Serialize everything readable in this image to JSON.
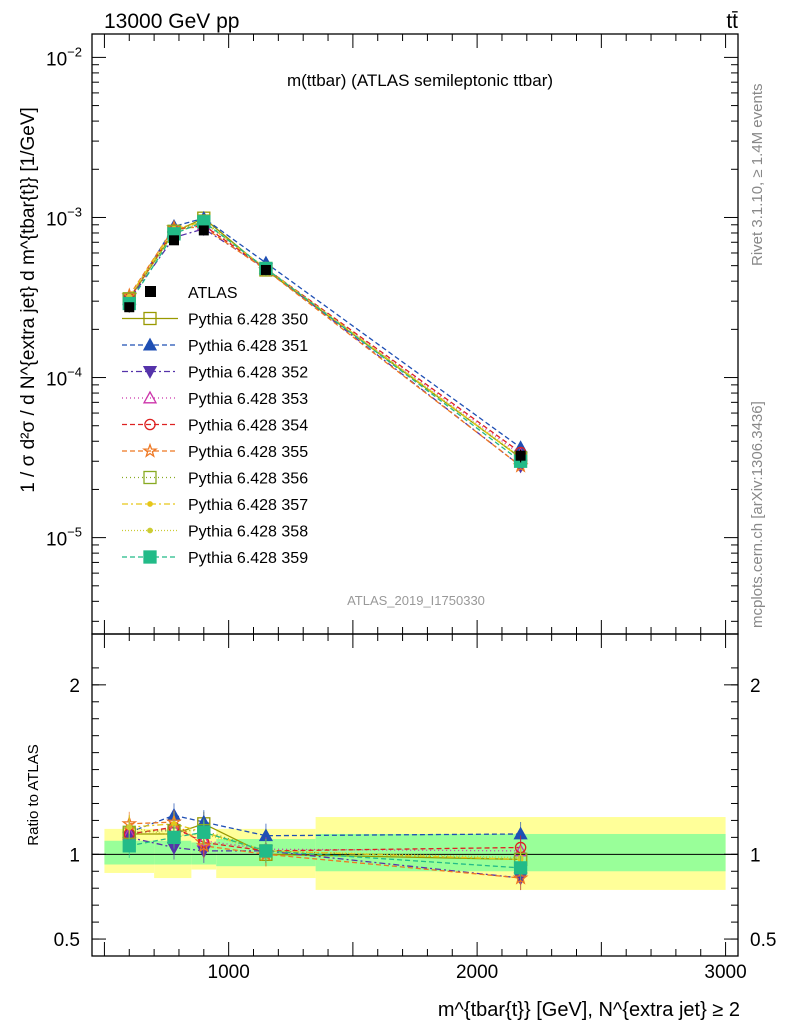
{
  "header": {
    "energy": "13000 GeV pp",
    "process": "tt̄",
    "rivet": "Rivet 3.1.10, ≥ 1.4M events",
    "mcplots": "mcplots.cern.ch [arXiv:1306.3436]"
  },
  "colors": {
    "band_inner": "#99ff99",
    "band_outer": "#ffff99"
  },
  "chart_data": [
    {
      "type": "line",
      "panel": "main",
      "title": "m(ttbar) (ATLAS semileptonic ttbar)",
      "analysis_tag": "ATLAS_2019_I1750330",
      "ylabel": "1 / σ d²σ / d N^{extra jet} d m^{tbar{t}} [1/GeV]",
      "yscale": "log",
      "xlim": [
        450,
        3050
      ],
      "ylim": [
        2.5e-06,
        0.014
      ],
      "y_ticks": [
        {
          "v": 1e-05,
          "m": "10",
          "e": "−5"
        },
        {
          "v": 0.0001,
          "m": "10",
          "e": "−4"
        },
        {
          "v": 0.001,
          "m": "10",
          "e": "−3"
        },
        {
          "v": 0.01,
          "m": "10",
          "e": "−2"
        }
      ],
      "legend_position": "left",
      "x": [
        600,
        780,
        900,
        1150,
        2175
      ],
      "data": {
        "name": "ATLAS",
        "values": [
          0.000275,
          0.00072,
          0.00083,
          0.00047,
          3.25e-05
        ],
        "errors": [
          2e-05,
          4e-05,
          4e-05,
          2e-05,
          3e-06
        ]
      },
      "series": [
        {
          "name": "Pythia 6.428 350",
          "color": "#999900",
          "dash": "",
          "marker": "open-square",
          "values": [
            0.00031,
            0.00081,
            0.00099,
            0.00047,
            3.15e-05
          ]
        },
        {
          "name": "Pythia 6.428 351",
          "color": "#1f4fb4",
          "dash": "5,3",
          "marker": "filled-triangle-up",
          "values": [
            0.00031,
            0.00088,
            0.00099,
            0.00052,
            3.65e-05
          ]
        },
        {
          "name": "Pythia 6.428 352",
          "color": "#5533aa",
          "dash": "6,3,2,3",
          "marker": "filled-triangle-down",
          "values": [
            0.000305,
            0.00075,
            0.00085,
            0.00048,
            2.8e-05
          ]
        },
        {
          "name": "Pythia 6.428 353",
          "color": "#cc33aa",
          "dash": "1,3",
          "marker": "open-triangle-up",
          "values": [
            0.00031,
            0.00083,
            0.0009,
            0.00048,
            3.3e-05
          ]
        },
        {
          "name": "Pythia 6.428 354",
          "color": "#dd2222",
          "dash": "5,3",
          "marker": "open-circle",
          "values": [
            0.00031,
            0.00084,
            0.00089,
            0.00048,
            3.4e-05
          ]
        },
        {
          "name": "Pythia 6.428 355",
          "color": "#ee7722",
          "dash": "5,3",
          "marker": "open-star",
          "values": [
            0.000325,
            0.00086,
            0.00087,
            0.00047,
            2.8e-05
          ]
        },
        {
          "name": "Pythia 6.428 356",
          "color": "#88aa22",
          "dash": "1,3",
          "marker": "open-square",
          "values": [
            0.00031,
            0.00082,
            0.00095,
            0.00048,
            3.15e-05
          ]
        },
        {
          "name": "Pythia 6.428 357",
          "color": "#e6c619",
          "dash": "6,3,2,3",
          "marker": "small-dot",
          "values": [
            0.00032,
            0.00085,
            0.00094,
            0.00048,
            3.15e-05
          ]
        },
        {
          "name": "Pythia 6.428 358",
          "color": "#cccc33",
          "dash": "1,2",
          "marker": "small-dot",
          "values": [
            0.00032,
            0.0008,
            0.00093,
            0.00048,
            3.2e-05
          ]
        },
        {
          "name": "Pythia 6.428 359",
          "color": "#22bb88",
          "dash": "5,3",
          "marker": "filled-square",
          "values": [
            0.00029,
            0.00079,
            0.00094,
            0.00048,
            3e-05
          ]
        }
      ]
    },
    {
      "type": "line",
      "panel": "ratio",
      "ylabel": "Ratio to ATLAS",
      "xlabel": "m^{tbar{t}} [GeV], N^{extra jet} ≥ 2",
      "xlim": [
        450,
        3050
      ],
      "ylim": [
        0.4,
        2.3
      ],
      "x_ticks": [
        1000,
        2000,
        3000
      ],
      "y_ticks": [
        0.5,
        1,
        2
      ],
      "bins": [
        {
          "lo": 500,
          "hi": 700,
          "inner": [
            0.94,
            1.08
          ],
          "outer": [
            0.89,
            1.15
          ]
        },
        {
          "lo": 700,
          "hi": 850,
          "inner": [
            0.94,
            1.08
          ],
          "outer": [
            0.86,
            1.15
          ]
        },
        {
          "lo": 850,
          "hi": 950,
          "inner": [
            0.94,
            1.07
          ],
          "outer": [
            0.91,
            1.12
          ]
        },
        {
          "lo": 950,
          "hi": 1350,
          "inner": [
            0.93,
            1.09
          ],
          "outer": [
            0.86,
            1.15
          ]
        },
        {
          "lo": 1350,
          "hi": 3000,
          "inner": [
            0.9,
            1.12
          ],
          "outer": [
            0.79,
            1.22
          ]
        }
      ],
      "x": [
        600,
        780,
        900,
        1150,
        2175
      ],
      "series": [
        {
          "name": "Pythia 6.428 350",
          "values": [
            1.12,
            1.12,
            1.18,
            1.0,
            0.97
          ]
        },
        {
          "name": "Pythia 6.428 351",
          "values": [
            1.13,
            1.23,
            1.19,
            1.11,
            1.12
          ]
        },
        {
          "name": "Pythia 6.428 352",
          "values": [
            1.1,
            1.04,
            1.02,
            1.02,
            0.86
          ]
        },
        {
          "name": "Pythia 6.428 353",
          "values": [
            1.12,
            1.15,
            1.08,
            1.03,
            1.02
          ]
        },
        {
          "name": "Pythia 6.428 354",
          "values": [
            1.12,
            1.16,
            1.07,
            1.02,
            1.04
          ]
        },
        {
          "name": "Pythia 6.428 355",
          "values": [
            1.18,
            1.19,
            1.05,
            1.0,
            0.86
          ]
        },
        {
          "name": "Pythia 6.428 356",
          "values": [
            1.13,
            1.14,
            1.14,
            1.02,
            0.97
          ]
        },
        {
          "name": "Pythia 6.428 357",
          "values": [
            1.16,
            1.18,
            1.13,
            1.02,
            0.97
          ]
        },
        {
          "name": "Pythia 6.428 358",
          "values": [
            1.16,
            1.11,
            1.12,
            1.02,
            0.98
          ]
        },
        {
          "name": "Pythia 6.428 359",
          "values": [
            1.05,
            1.1,
            1.13,
            1.02,
            0.92
          ]
        }
      ]
    }
  ]
}
